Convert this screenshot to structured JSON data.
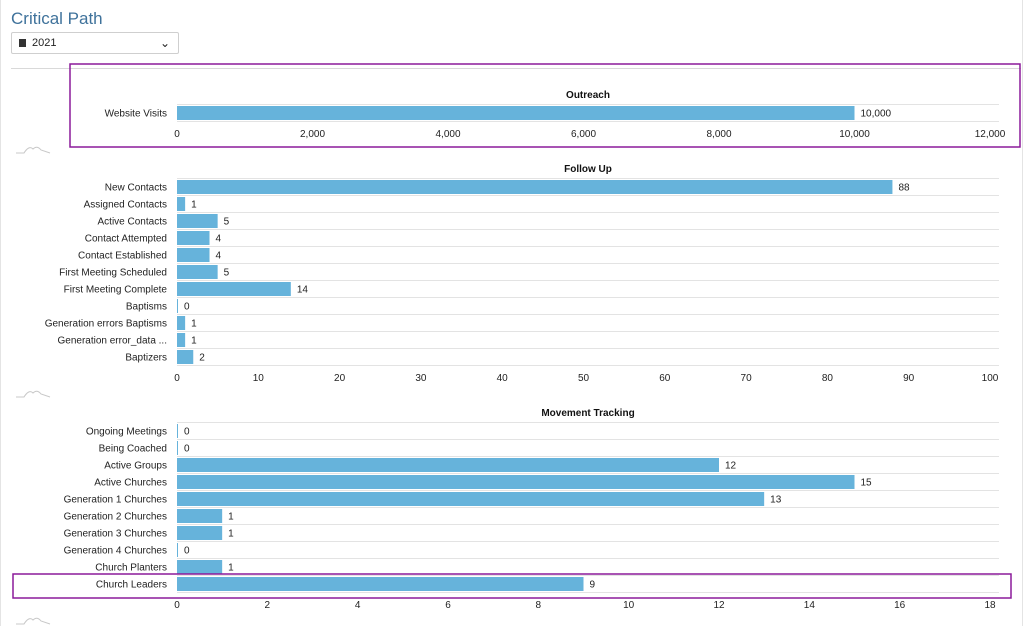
{
  "header": {
    "title": "Critical Path"
  },
  "year_select": {
    "value": "2021",
    "icon": "calendar-icon",
    "chevron": "chevron-down-icon"
  },
  "colors": {
    "bar": "#66b3db",
    "highlight": "#8b1a9a",
    "title": "#3f729b"
  },
  "chart_data": [
    {
      "type": "bar",
      "orientation": "horizontal",
      "title": "Outreach",
      "categories": [
        "Website Visits"
      ],
      "values": [
        10000
      ],
      "value_labels": [
        "10,000"
      ],
      "xlim": [
        0,
        12000
      ],
      "ticks": [
        "0",
        "2,000",
        "4,000",
        "6,000",
        "8,000",
        "10,000",
        "12,000"
      ],
      "tick_values": [
        0,
        2000,
        4000,
        6000,
        8000,
        10000,
        12000
      ],
      "highlighted": true
    },
    {
      "type": "bar",
      "orientation": "horizontal",
      "title": "Follow Up",
      "categories": [
        "New Contacts",
        "Assigned Contacts",
        "Active Contacts",
        "Contact Attempted",
        "Contact Established",
        "First Meeting Scheduled",
        "First Meeting Complete",
        "Baptisms",
        "Generation errors Baptisms",
        "Generation error_data ...",
        "Baptizers"
      ],
      "values": [
        88,
        1,
        5,
        4,
        4,
        5,
        14,
        0,
        1,
        1,
        2
      ],
      "value_labels": [
        "88",
        "1",
        "5",
        "4",
        "4",
        "5",
        "14",
        "0",
        "1",
        "1",
        "2"
      ],
      "xlim": [
        0,
        100
      ],
      "ticks": [
        "0",
        "10",
        "20",
        "30",
        "40",
        "50",
        "60",
        "70",
        "80",
        "90",
        "100"
      ],
      "tick_values": [
        0,
        10,
        20,
        30,
        40,
        50,
        60,
        70,
        80,
        90,
        100
      ]
    },
    {
      "type": "bar",
      "orientation": "horizontal",
      "title": "Movement Tracking",
      "categories": [
        "Ongoing Meetings",
        "Being Coached",
        "Active Groups",
        "Active Churches",
        "Generation 1 Churches",
        "Generation 2 Churches",
        "Generation 3 Churches",
        "Generation 4 Churches",
        "Church Planters",
        "Church Leaders"
      ],
      "values": [
        0,
        0,
        12,
        15,
        13,
        1,
        1,
        0,
        1,
        9
      ],
      "value_labels": [
        "0",
        "0",
        "12",
        "15",
        "13",
        "1",
        "1",
        "0",
        "1",
        "9"
      ],
      "xlim": [
        0,
        18
      ],
      "ticks": [
        "0",
        "2",
        "4",
        "6",
        "8",
        "10",
        "12",
        "14",
        "16",
        "18"
      ],
      "tick_values": [
        0,
        2,
        4,
        6,
        8,
        10,
        12,
        14,
        16,
        18
      ],
      "highlighted_category": "Church Leaders"
    }
  ]
}
